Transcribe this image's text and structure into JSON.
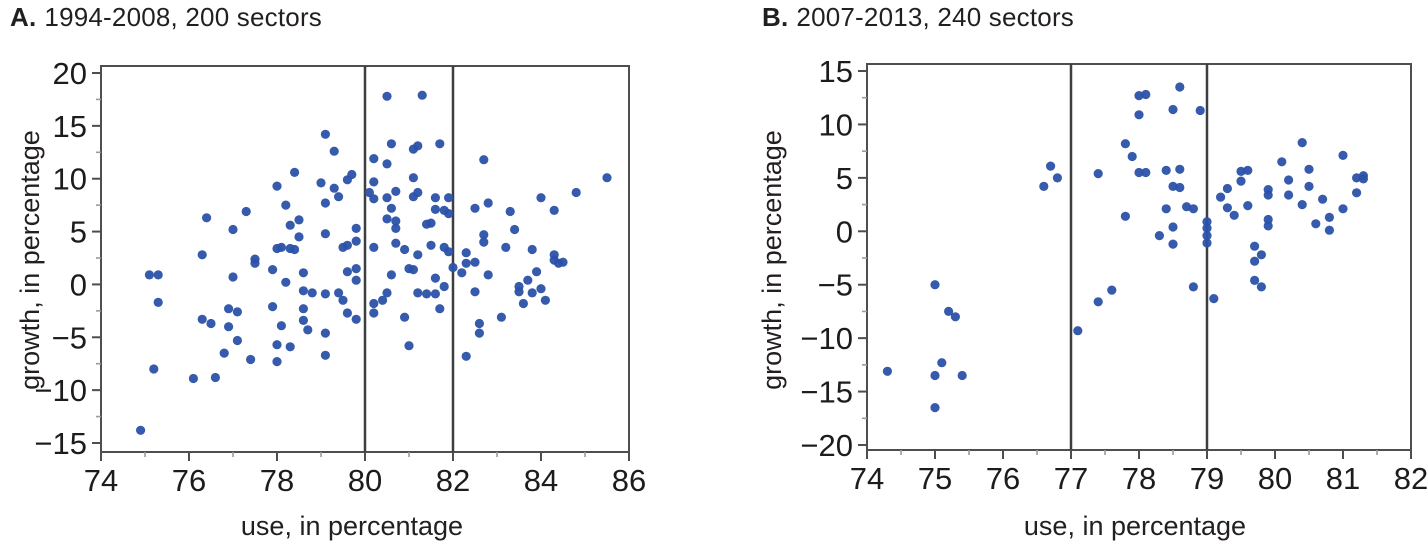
{
  "figure": {
    "background": "#ffffff",
    "point_color": "#2b51a8",
    "axis_color": "#4d4e52",
    "minor_tick_color": "#9b9b9b",
    "refline_color": "#3d3e40",
    "text_color": "#1c1c1e"
  },
  "panels": [
    {
      "label": "A.",
      "caption": "1994-2008, 200 sectors",
      "xlabel": "use, in percentage",
      "ylabel": "growth, in percentage"
    },
    {
      "label": "B.",
      "caption": "2007-2013, 240 sectors",
      "xlabel": "use, in percentage",
      "ylabel": "growth, in percentage"
    }
  ],
  "chart_data": [
    {
      "type": "scatter",
      "title": "A. 1994-2008, 200 sectors",
      "xlabel": "use, in percentage",
      "ylabel": "growth, in percentage",
      "xlim": [
        74,
        86
      ],
      "ylim": [
        -15,
        20
      ],
      "xticks": [
        74,
        76,
        78,
        80,
        82,
        84,
        86
      ],
      "xticks_minor": [
        75,
        77,
        79,
        81,
        83,
        85
      ],
      "yticks": [
        -15,
        -10,
        -5,
        0,
        5,
        10,
        15,
        20
      ],
      "yticks_minor": [
        -12.5,
        -7.5,
        -2.5,
        2.5,
        7.5,
        12.5,
        17.5
      ],
      "vlines": [
        80,
        82
      ],
      "grid": false,
      "legend": null,
      "marker": "dot",
      "points": [
        [
          79.1,
          14.2
        ],
        [
          79.3,
          12.6
        ],
        [
          78.4,
          10.6
        ],
        [
          78.0,
          9.3
        ],
        [
          79.0,
          9.6
        ],
        [
          79.3,
          9.1
        ],
        [
          79.6,
          9.9
        ],
        [
          79.7,
          10.4
        ],
        [
          79.4,
          8.3
        ],
        [
          79.1,
          7.7
        ],
        [
          78.2,
          7.5
        ],
        [
          76.4,
          6.3
        ],
        [
          77.3,
          6.9
        ],
        [
          77.0,
          5.2
        ],
        [
          78.3,
          5.6
        ],
        [
          78.5,
          6.1
        ],
        [
          78.5,
          4.5
        ],
        [
          79.1,
          4.8
        ],
        [
          78.0,
          3.4
        ],
        [
          78.1,
          3.5
        ],
        [
          78.3,
          3.4
        ],
        [
          78.4,
          3.3
        ],
        [
          76.3,
          2.8
        ],
        [
          79.5,
          3.5
        ],
        [
          79.6,
          3.7
        ],
        [
          79.8,
          4.1
        ],
        [
          79.8,
          5.3
        ],
        [
          77.5,
          2.4
        ],
        [
          80.5,
          17.8
        ],
        [
          81.3,
          17.9
        ],
        [
          80.6,
          13.3
        ],
        [
          81.1,
          12.8
        ],
        [
          81.2,
          13.1
        ],
        [
          81.7,
          13.3
        ],
        [
          80.2,
          11.9
        ],
        [
          80.5,
          11.4
        ],
        [
          80.2,
          9.7
        ],
        [
          81.1,
          10.1
        ],
        [
          80.1,
          8.7
        ],
        [
          80.7,
          8.8
        ],
        [
          80.2,
          8.1
        ],
        [
          80.5,
          8.2
        ],
        [
          81.1,
          8.3
        ],
        [
          81.6,
          8.2
        ],
        [
          81.9,
          8.2
        ],
        [
          80.6,
          7.2
        ],
        [
          81.2,
          8.7
        ],
        [
          81.6,
          7.1
        ],
        [
          81.8,
          7.0
        ],
        [
          81.9,
          6.7
        ],
        [
          80.5,
          6.2
        ],
        [
          80.7,
          6.0
        ],
        [
          81.4,
          5.7
        ],
        [
          81.5,
          5.8
        ],
        [
          80.7,
          5.3
        ],
        [
          80.2,
          3.5
        ],
        [
          80.7,
          3.9
        ],
        [
          80.9,
          3.3
        ],
        [
          81.2,
          2.8
        ],
        [
          81.5,
          3.7
        ],
        [
          81.8,
          3.5
        ],
        [
          81.9,
          3.1
        ],
        [
          82.7,
          11.8
        ],
        [
          85.5,
          10.1
        ],
        [
          84.8,
          8.7
        ],
        [
          84.0,
          8.2
        ],
        [
          82.5,
          7.2
        ],
        [
          82.8,
          7.7
        ],
        [
          84.3,
          7.0
        ],
        [
          83.3,
          6.9
        ],
        [
          83.4,
          5.2
        ],
        [
          82.7,
          4.7
        ],
        [
          82.7,
          4.0
        ],
        [
          83.2,
          3.5
        ],
        [
          83.8,
          3.3
        ],
        [
          84.3,
          2.8
        ],
        [
          84.3,
          2.3
        ],
        [
          82.3,
          3.0
        ],
        [
          82.5,
          2.1
        ],
        [
          75.1,
          0.9
        ],
        [
          75.3,
          0.9
        ],
        [
          77.0,
          0.7
        ],
        [
          77.5,
          2.0
        ],
        [
          77.9,
          1.4
        ],
        [
          78.2,
          0.2
        ],
        [
          78.6,
          1.1
        ],
        [
          75.3,
          -1.7
        ],
        [
          78.6,
          -0.6
        ],
        [
          78.8,
          -0.8
        ],
        [
          79.1,
          -0.9
        ],
        [
          79.4,
          -0.8
        ],
        [
          79.6,
          1.2
        ],
        [
          79.8,
          0.4
        ],
        [
          79.8,
          1.5
        ],
        [
          76.3,
          -3.3
        ],
        [
          76.5,
          -3.7
        ],
        [
          76.9,
          -2.3
        ],
        [
          76.9,
          -4.0
        ],
        [
          77.1,
          -2.6
        ],
        [
          77.1,
          -5.3
        ],
        [
          76.8,
          -6.5
        ],
        [
          77.9,
          -2.1
        ],
        [
          78.1,
          -3.9
        ],
        [
          78.0,
          -5.7
        ],
        [
          77.4,
          -7.1
        ],
        [
          78.0,
          -7.3
        ],
        [
          78.6,
          -2.3
        ],
        [
          78.6,
          -3.4
        ],
        [
          78.7,
          -4.3
        ],
        [
          78.3,
          -5.9
        ],
        [
          79.1,
          -4.6
        ],
        [
          79.1,
          -6.7
        ],
        [
          79.5,
          -1.5
        ],
        [
          79.6,
          -2.7
        ],
        [
          79.8,
          -3.3
        ],
        [
          75.2,
          -8.0
        ],
        [
          76.1,
          -8.9
        ],
        [
          76.6,
          -8.8
        ],
        [
          74.9,
          -13.8
        ],
        [
          80.2,
          -1.8
        ],
        [
          80.4,
          -1.5
        ],
        [
          80.5,
          -0.8
        ],
        [
          80.6,
          0.9
        ],
        [
          81.0,
          1.5
        ],
        [
          81.1,
          1.4
        ],
        [
          80.2,
          -2.7
        ],
        [
          80.9,
          -3.1
        ],
        [
          81.2,
          -0.8
        ],
        [
          81.4,
          -0.9
        ],
        [
          81.6,
          0.6
        ],
        [
          81.6,
          -0.9
        ],
        [
          81.8,
          -0.2
        ],
        [
          81.7,
          -2.3
        ],
        [
          81.0,
          -5.8
        ],
        [
          82.0,
          1.6
        ],
        [
          82.2,
          1.1
        ],
        [
          82.3,
          -6.8
        ],
        [
          82.3,
          2.0
        ],
        [
          82.5,
          -0.7
        ],
        [
          82.6,
          -4.6
        ],
        [
          82.6,
          -3.7
        ],
        [
          82.8,
          0.9
        ],
        [
          83.1,
          -3.1
        ],
        [
          83.5,
          -0.2
        ],
        [
          83.5,
          -0.7
        ],
        [
          83.6,
          -1.8
        ],
        [
          83.7,
          0.4
        ],
        [
          83.8,
          -0.8
        ],
        [
          83.9,
          1.2
        ],
        [
          84.0,
          -0.4
        ],
        [
          84.1,
          -1.5
        ],
        [
          84.4,
          2.0
        ],
        [
          84.5,
          2.1
        ]
      ]
    },
    {
      "type": "scatter",
      "title": "B. 2007-2013, 240 sectors",
      "xlabel": "use, in percentage",
      "ylabel": "growth, in percentage",
      "xlim": [
        74,
        82
      ],
      "ylim": [
        -20,
        15
      ],
      "xticks": [
        74,
        75,
        76,
        77,
        78,
        79,
        80,
        81,
        82
      ],
      "xticks_minor": [
        74.5,
        75.5,
        76.5,
        77.5,
        78.5,
        79.5,
        80.5,
        81.5
      ],
      "yticks": [
        -20,
        -15,
        -10,
        -5,
        0,
        5,
        10,
        15
      ],
      "yticks_minor": [
        -17.5,
        -12.5,
        -7.5,
        -2.5,
        2.5,
        7.5,
        12.5
      ],
      "vlines": [
        77,
        79
      ],
      "grid": false,
      "legend": null,
      "marker": "dot",
      "points": [
        [
          76.7,
          6.1
        ],
        [
          76.8,
          5.0
        ],
        [
          76.6,
          4.2
        ],
        [
          77.4,
          5.4
        ],
        [
          77.8,
          8.2
        ],
        [
          77.9,
          7.0
        ],
        [
          78.0,
          12.7
        ],
        [
          78.0,
          10.9
        ],
        [
          77.8,
          1.4
        ],
        [
          78.0,
          5.5
        ],
        [
          78.6,
          13.5
        ],
        [
          78.5,
          11.4
        ],
        [
          78.9,
          11.3
        ],
        [
          78.1,
          12.8
        ],
        [
          78.1,
          5.5
        ],
        [
          78.4,
          5.7
        ],
        [
          78.6,
          5.8
        ],
        [
          78.5,
          4.2
        ],
        [
          78.6,
          4.1
        ],
        [
          78.4,
          2.1
        ],
        [
          78.7,
          2.3
        ],
        [
          78.8,
          2.1
        ],
        [
          78.5,
          0.4
        ],
        [
          78.3,
          -0.4
        ],
        [
          78.5,
          -1.2
        ],
        [
          79.0,
          0.9
        ],
        [
          79.0,
          0.3
        ],
        [
          79.0,
          -0.4
        ],
        [
          79.0,
          -1.1
        ],
        [
          79.2,
          3.2
        ],
        [
          79.3,
          2.2
        ],
        [
          79.3,
          4.0
        ],
        [
          79.4,
          1.5
        ],
        [
          79.5,
          4.7
        ],
        [
          79.5,
          5.6
        ],
        [
          79.6,
          5.7
        ],
        [
          79.6,
          2.4
        ],
        [
          79.9,
          3.9
        ],
        [
          79.9,
          3.4
        ],
        [
          79.9,
          1.1
        ],
        [
          79.9,
          0.5
        ],
        [
          80.1,
          6.5
        ],
        [
          80.2,
          4.8
        ],
        [
          80.2,
          3.4
        ],
        [
          80.4,
          8.3
        ],
        [
          80.5,
          5.8
        ],
        [
          80.5,
          4.2
        ],
        [
          80.4,
          2.5
        ],
        [
          80.7,
          3.0
        ],
        [
          80.6,
          0.7
        ],
        [
          80.8,
          0.1
        ],
        [
          80.8,
          1.3
        ],
        [
          81.0,
          7.1
        ],
        [
          81.0,
          2.1
        ],
        [
          81.2,
          3.6
        ],
        [
          81.2,
          5.0
        ],
        [
          81.3,
          5.2
        ],
        [
          81.3,
          4.9
        ],
        [
          75.0,
          -5.0
        ],
        [
          75.2,
          -7.5
        ],
        [
          75.3,
          -8.0
        ],
        [
          75.1,
          -12.3
        ],
        [
          74.3,
          -13.1
        ],
        [
          75.0,
          -13.5
        ],
        [
          75.4,
          -13.5
        ],
        [
          75.0,
          -16.5
        ],
        [
          77.1,
          -9.3
        ],
        [
          77.4,
          -6.6
        ],
        [
          77.6,
          -5.5
        ],
        [
          78.8,
          -5.2
        ],
        [
          79.1,
          -6.3
        ],
        [
          79.7,
          -2.8
        ],
        [
          79.7,
          -4.6
        ],
        [
          79.8,
          -5.2
        ],
        [
          79.8,
          -2.2
        ],
        [
          79.7,
          -1.4
        ]
      ]
    }
  ]
}
